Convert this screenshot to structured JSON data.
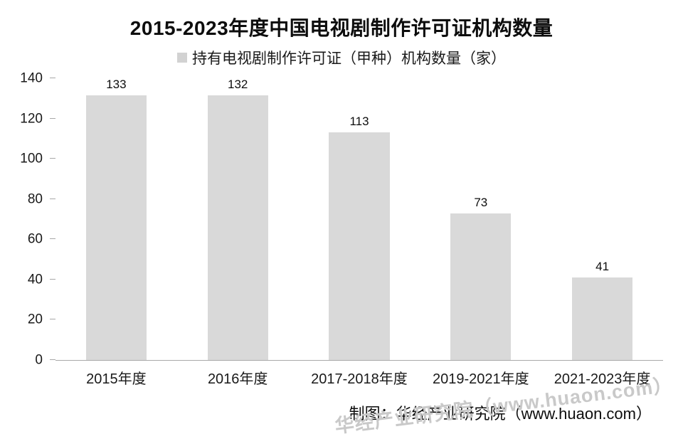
{
  "chart": {
    "title": "2015-2023年度中国电视剧制作许可证机构数量",
    "legend_label": "持有电视剧制作许可证（甲种）机构数量（家）",
    "footer": "制图：华经产业研究院（www.huaon.com）",
    "watermark": "华经产业研究院（www.huaon.com）"
  },
  "chart_data": {
    "type": "bar",
    "title": "2015-2023年度中国电视剧制作许可证机构数量",
    "categories": [
      "2015年度",
      "2016年度",
      "2017-2018年度",
      "2019-2021年度",
      "2021-2023年度"
    ],
    "values": [
      133,
      132,
      113,
      73,
      41
    ],
    "legend": [
      "持有电视剧制作许可证（甲种）机构数量（家）"
    ],
    "xlabel": "",
    "ylabel": "",
    "ylim": [
      0,
      140
    ],
    "yticks": [
      0,
      20,
      40,
      60,
      80,
      100,
      120,
      140
    ],
    "bar_color": "#d9d9d9",
    "value_label_color": "#0d0d0d",
    "grid": false,
    "legend_position": "top"
  }
}
